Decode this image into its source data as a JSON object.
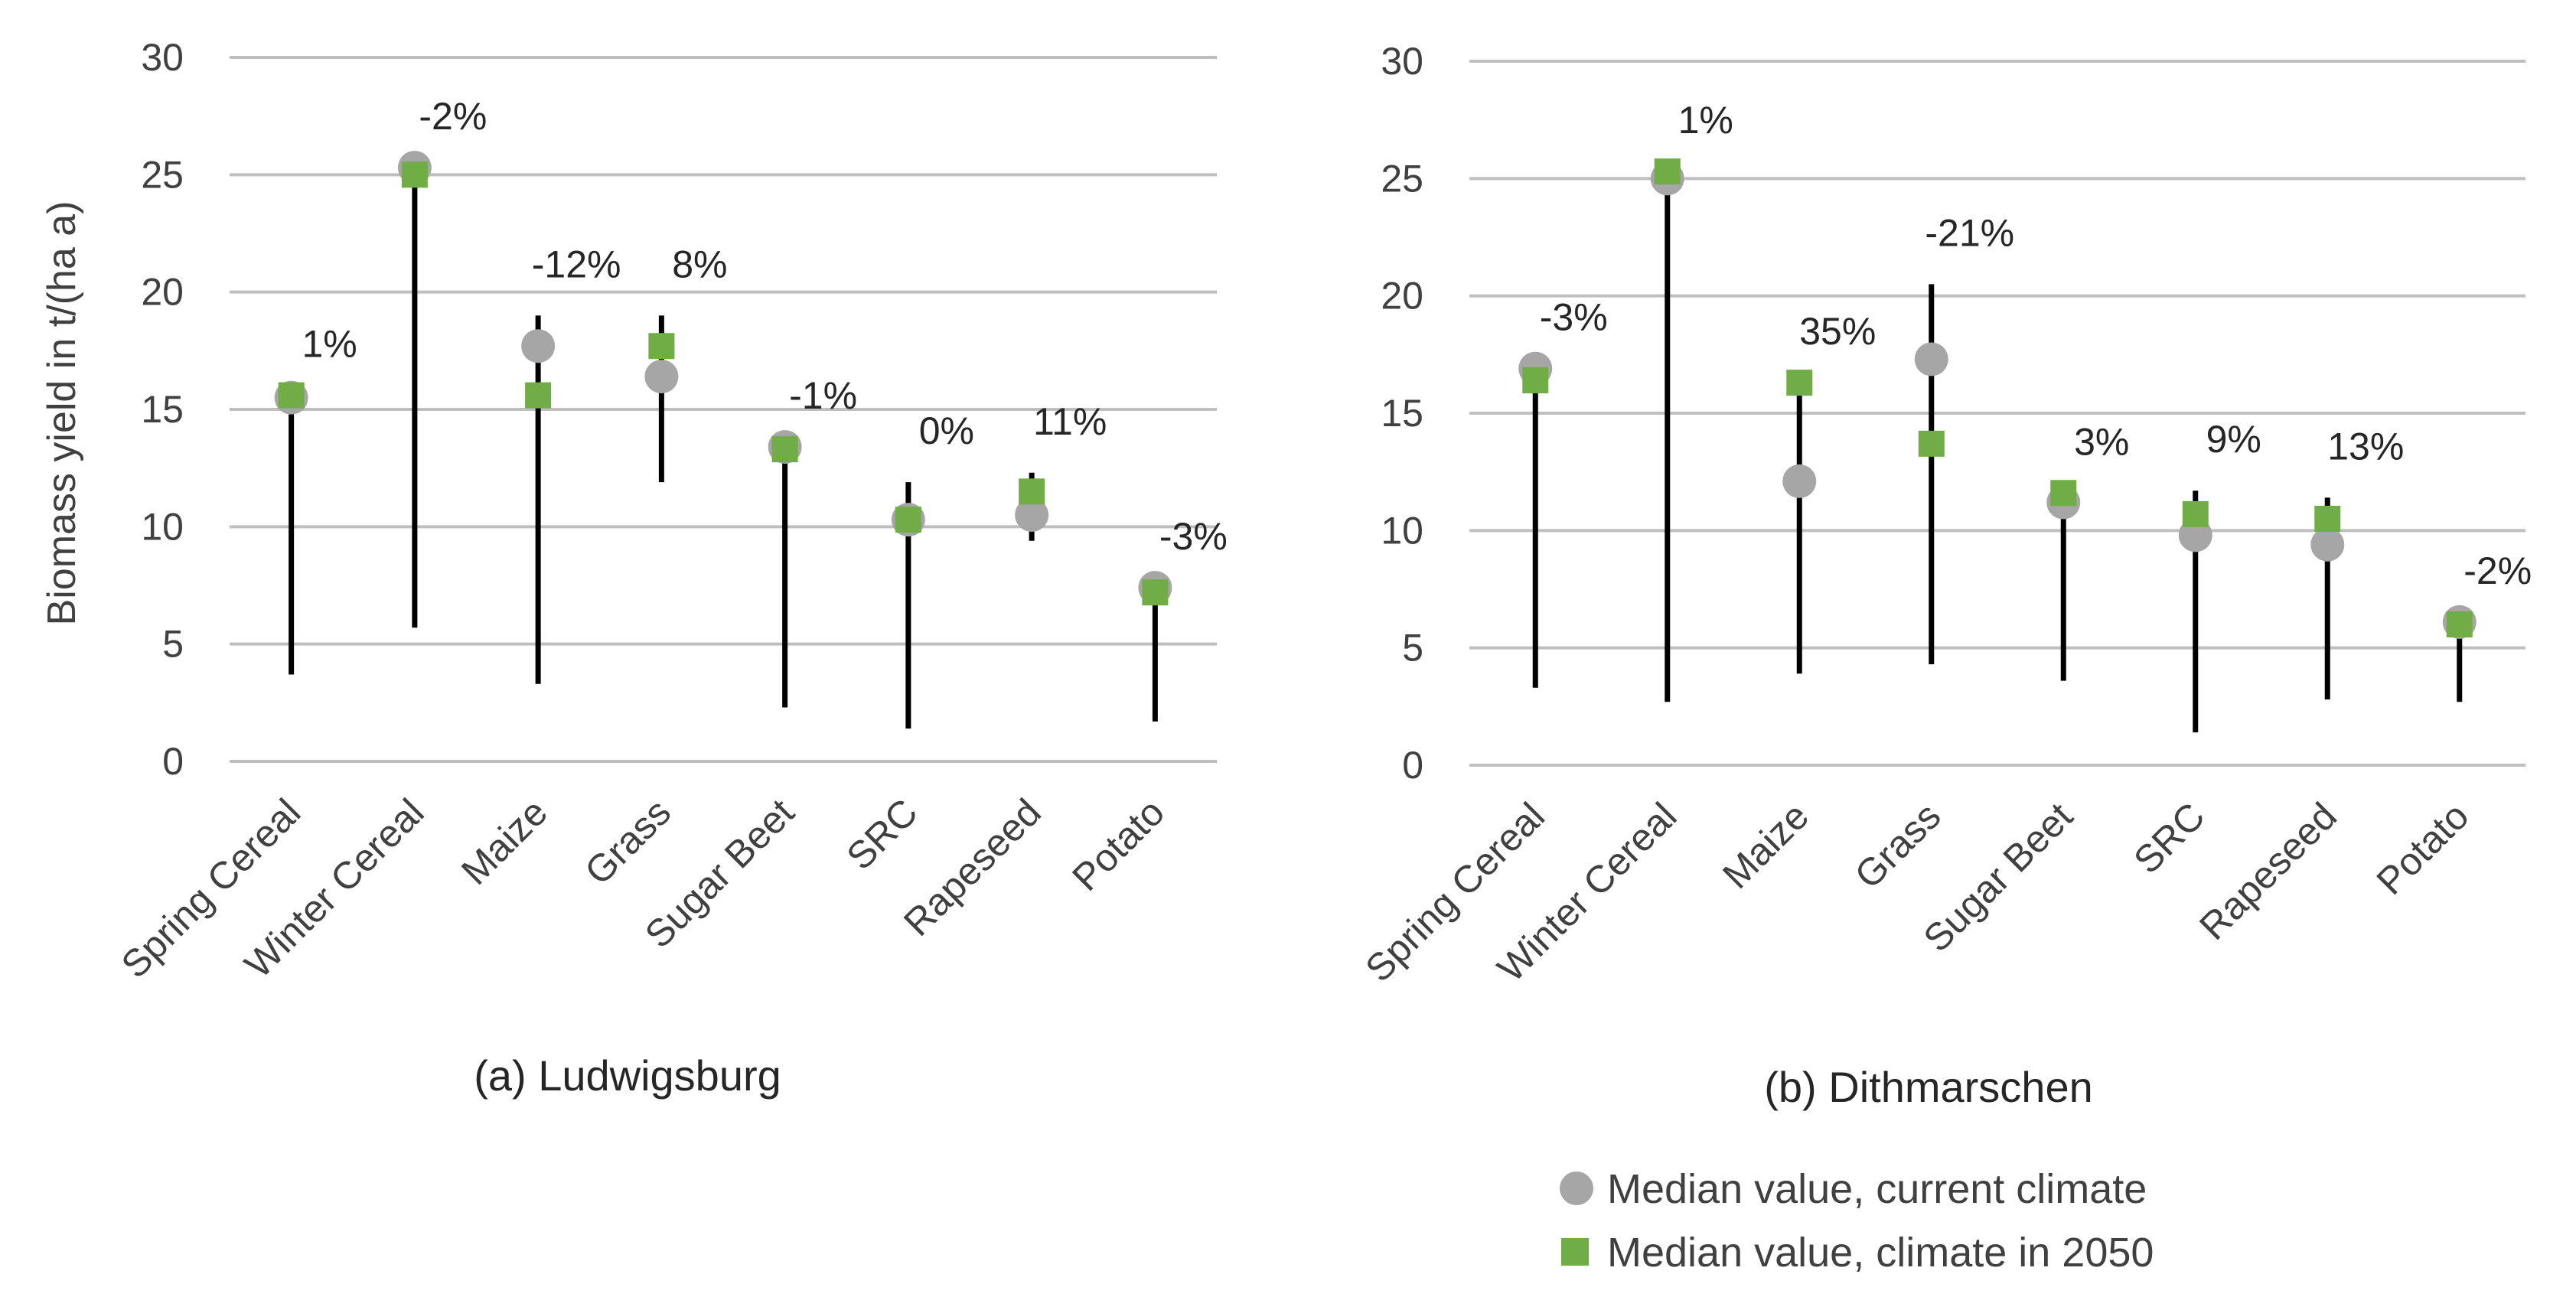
{
  "colors": {
    "current": "#a6a6a6",
    "future": "#70ad47",
    "range": "#000000",
    "grid": "#bfbfbf",
    "text": "#404040"
  },
  "ylabel": "Biomass yield in t/(ha a)",
  "legend": {
    "items": [
      {
        "label": "Median value, current climate",
        "marker": "circle",
        "color": "#a6a6a6"
      },
      {
        "label": "Median value, climate in 2050",
        "marker": "square",
        "color": "#70ad47"
      }
    ]
  },
  "chart_data": [
    {
      "type": "scatter",
      "title": "(a) Ludwigsburg",
      "ylabel": "Biomass yield in t/(ha a)",
      "ylim": [
        0,
        30
      ],
      "yticks": [
        0,
        5,
        10,
        15,
        20,
        25,
        30
      ],
      "grid": true,
      "categories": [
        "Spring Cereal",
        "Winter Cereal",
        "Maize",
        "Grass",
        "Sugar Beet",
        "SRC",
        "Rapeseed",
        "Potato"
      ],
      "series": [
        {
          "name": "Median value, current climate",
          "values": [
            15.5,
            25.3,
            17.7,
            16.4,
            13.4,
            10.3,
            10.5,
            7.4
          ]
        },
        {
          "name": "Median value, climate in 2050",
          "values": [
            15.6,
            25.0,
            15.6,
            17.7,
            13.3,
            10.3,
            11.5,
            7.2
          ]
        }
      ],
      "range_low": [
        3.7,
        5.7,
        3.3,
        11.9,
        2.3,
        1.4,
        9.4,
        1.7
      ],
      "range_high": [
        15.6,
        25.3,
        19.0,
        19.0,
        13.4,
        11.9,
        12.3,
        7.4
      ],
      "change_labels": [
        "1%",
        "-2%",
        "-12%",
        "8%",
        "-1%",
        "0%",
        "11%",
        "-3%"
      ]
    },
    {
      "type": "scatter",
      "title": "(b) Dithmarschen",
      "ylim": [
        0,
        30
      ],
      "yticks": [
        0,
        5,
        10,
        15,
        20,
        25,
        30
      ],
      "grid": true,
      "categories": [
        "Spring Cereal",
        "Winter Cereal",
        "Maize",
        "Grass",
        "Sugar Beet",
        "SRC",
        "Rapeseed",
        "Potato"
      ],
      "series": [
        {
          "name": "Median value, current climate",
          "values": [
            16.9,
            25.0,
            12.1,
            17.3,
            11.2,
            9.8,
            9.4,
            6.1
          ]
        },
        {
          "name": "Median value, climate in 2050",
          "values": [
            16.4,
            25.3,
            16.3,
            13.7,
            11.6,
            10.7,
            10.5,
            6.0
          ]
        }
      ],
      "range_low": [
        3.3,
        2.7,
        3.9,
        4.3,
        3.6,
        1.4,
        2.8,
        2.7
      ],
      "range_high": [
        16.9,
        25.3,
        16.3,
        20.5,
        11.6,
        11.7,
        11.4,
        6.1
      ],
      "change_labels": [
        "-3%",
        "1%",
        "35%",
        "-21%",
        "3%",
        "9%",
        "13%",
        "-2%"
      ]
    }
  ]
}
